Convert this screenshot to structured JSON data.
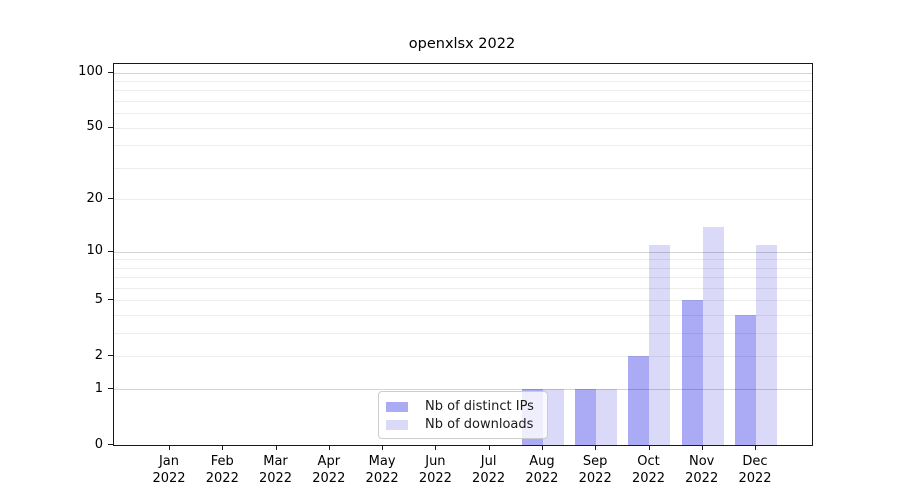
{
  "title": "openxlsx 2022",
  "chart_data": {
    "type": "bar",
    "title": "openxlsx 2022",
    "categories": [
      "Jan",
      "Feb",
      "Mar",
      "Apr",
      "May",
      "Jun",
      "Jul",
      "Aug",
      "Sep",
      "Oct",
      "Nov",
      "Dec"
    ],
    "category_year": "2022",
    "series": [
      {
        "name": "Nb of distinct IPs",
        "color": "#aaaaf5",
        "values": [
          0,
          0,
          0,
          0,
          0,
          0,
          0,
          1,
          1,
          2,
          5,
          4
        ]
      },
      {
        "name": "Nb of downloads",
        "color": "#dadaf8",
        "values": [
          0,
          0,
          0,
          0,
          0,
          0,
          0,
          1,
          1,
          11,
          14,
          11
        ]
      }
    ],
    "yscale": "log1p",
    "ylim": [
      0,
      100
    ],
    "ytick_values": [
      0,
      1,
      2,
      5,
      10,
      20,
      50,
      100
    ],
    "ytick_labels": [
      "0",
      "1",
      "2",
      "5",
      "10",
      "20",
      "50",
      "100"
    ],
    "major_grid_values": [
      1,
      10,
      100
    ],
    "minor_grid_values": [
      2,
      3,
      4,
      5,
      6,
      7,
      8,
      9,
      20,
      30,
      40,
      50,
      60,
      70,
      80,
      90
    ],
    "grid": true,
    "legend_position": "lower center"
  }
}
